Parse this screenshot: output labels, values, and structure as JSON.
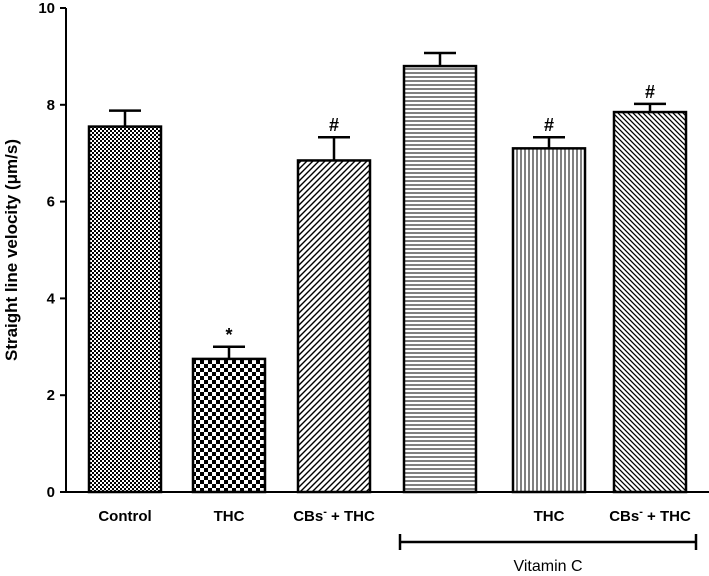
{
  "chart_data": {
    "type": "bar",
    "title": "",
    "xlabel": "",
    "ylabel": "Straight line velocity (μm/s)",
    "ylim": [
      0,
      10
    ],
    "yticks": [
      "0",
      "2",
      "4",
      "6",
      "8",
      "10"
    ],
    "categories": [
      "Control",
      "THC",
      "CBs- + THC",
      "",
      "THC",
      "CBs- + THC"
    ],
    "values": [
      7.55,
      2.75,
      6.85,
      8.8,
      7.1,
      7.85
    ],
    "errors": [
      0.33,
      0.25,
      0.48,
      0.27,
      0.23,
      0.17
    ],
    "annotations": [
      "",
      "*",
      "#",
      "",
      "#",
      "#"
    ],
    "patterns": [
      "dots",
      "checker",
      "diag-right",
      "horizontal",
      "vertical",
      "diag-left"
    ],
    "group_label": "Vitamin C"
  },
  "labels": {
    "control": "Control",
    "thc": "THC",
    "cbs_thc_base": "CBs",
    "cbs_thc_sup": "-",
    "cbs_thc_rest": " + THC",
    "ylabel_text": "Straight line velocity (",
    "ylabel_mu": "μm/s",
    "ylabel_close": ")",
    "group": "Vitamin C"
  }
}
